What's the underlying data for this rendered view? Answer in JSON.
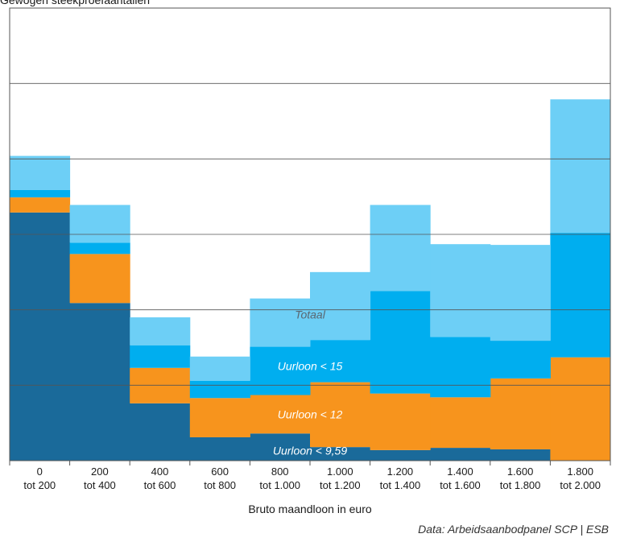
{
  "chart_data": {
    "type": "bar",
    "stacked": true,
    "ylabel": "Gewogen steekproefaantallen",
    "xlabel": "Bruto maandloon in euro",
    "source": "Data: Arbeidsaanbodpanel SCP | ESB",
    "categories": [
      [
        "0",
        "tot 200"
      ],
      [
        "200",
        "tot 400"
      ],
      [
        "400",
        "tot 600"
      ],
      [
        "600",
        "tot 800"
      ],
      [
        "800",
        "tot 1.000"
      ],
      [
        "1.000",
        "tot 1.200"
      ],
      [
        "1.200",
        "tot 1.400"
      ],
      [
        "1.400",
        "tot 1.600"
      ],
      [
        "1.600",
        "tot 1.800"
      ],
      [
        "1.800",
        "tot 2.000"
      ]
    ],
    "ylim": [
      0,
      6
    ],
    "gridlines": [
      1,
      2,
      3,
      4,
      5
    ],
    "series": [
      {
        "name": "Uurloon < 9,59",
        "color": "#1a6a9a",
        "values": [
          3.29,
          2.09,
          0.76,
          0.31,
          0.36,
          0.18,
          0.14,
          0.17,
          0.15,
          0.0
        ]
      },
      {
        "name": "Uurloon < 12",
        "color": "#f7941d",
        "values": [
          0.2,
          0.65,
          0.47,
          0.52,
          0.51,
          0.86,
          0.75,
          0.67,
          0.94,
          1.37
        ]
      },
      {
        "name": "Uurloon < 15",
        "color": "#00aeef",
        "values": [
          0.1,
          0.15,
          0.3,
          0.23,
          0.64,
          0.56,
          1.36,
          0.8,
          0.5,
          1.65
        ]
      },
      {
        "name": "Totaal",
        "color": "#6dcff6",
        "values": [
          0.45,
          0.5,
          0.37,
          0.32,
          0.64,
          0.9,
          1.14,
          1.23,
          1.27,
          1.77
        ]
      }
    ]
  }
}
